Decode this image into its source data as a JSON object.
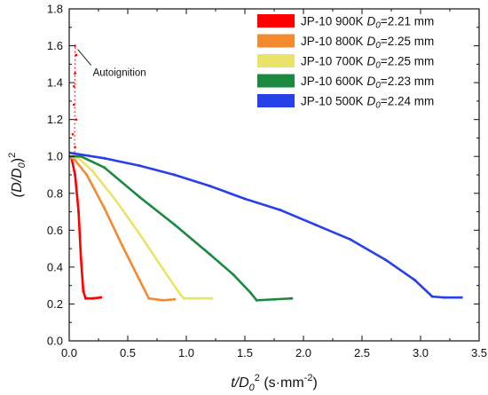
{
  "chart_data": {
    "type": "line",
    "xlabel": {
      "main": "t/D",
      "sub": "0",
      "sup": "2",
      "units": " (s·mm",
      "units_sup": "-2",
      "units_end": ")"
    },
    "ylabel": {
      "open": "(D/D",
      "sub": "0",
      "close": ")",
      "sup": "2"
    },
    "xlim": [
      0,
      3.5
    ],
    "ylim": [
      0,
      1.8
    ],
    "xticks": [
      "0.0",
      "0.5",
      "1.0",
      "1.5",
      "2.0",
      "2.5",
      "3.0",
      "3.5"
    ],
    "yticks": [
      "0.0",
      "0.2",
      "0.4",
      "0.6",
      "0.8",
      "1.0",
      "1.2",
      "1.4",
      "1.6",
      "1.8"
    ],
    "grid": false,
    "legend_position": "top-right",
    "annotation": {
      "text": "Autoignition",
      "x": 0.05,
      "y": 1.6
    },
    "series": [
      {
        "name": "JP-10 900K",
        "d0_label": "D",
        "d0_sub": "0",
        "d0_value": "=2.21 mm",
        "color": "#ff0000",
        "points": [
          [
            0.0,
            1.0
          ],
          [
            0.02,
            0.99
          ],
          [
            0.05,
            0.9
          ],
          [
            0.08,
            0.7
          ],
          [
            0.1,
            0.45
          ],
          [
            0.12,
            0.27
          ],
          [
            0.14,
            0.23
          ],
          [
            0.2,
            0.23
          ],
          [
            0.27,
            0.235
          ]
        ],
        "spikes": [
          [
            0.03,
            1.12
          ],
          [
            0.04,
            1.28
          ],
          [
            0.05,
            1.45
          ],
          [
            0.05,
            1.6
          ],
          [
            0.06,
            1.55
          ],
          [
            0.04,
            1.38
          ],
          [
            0.06,
            1.2
          ],
          [
            0.05,
            1.05
          ]
        ]
      },
      {
        "name": "JP-10 800K",
        "d0_label": "D",
        "d0_sub": "0",
        "d0_value": "=2.25 mm",
        "color": "#f28a30",
        "points": [
          [
            0.0,
            1.0
          ],
          [
            0.05,
            0.98
          ],
          [
            0.15,
            0.9
          ],
          [
            0.3,
            0.72
          ],
          [
            0.45,
            0.52
          ],
          [
            0.6,
            0.33
          ],
          [
            0.68,
            0.23
          ],
          [
            0.8,
            0.22
          ],
          [
            0.9,
            0.225
          ]
        ]
      },
      {
        "name": "JP-10 700K",
        "d0_label": "D",
        "d0_sub": "0",
        "d0_value": "=2.25 mm",
        "color": "#e9e36a",
        "points": [
          [
            0.0,
            1.0
          ],
          [
            0.08,
            0.99
          ],
          [
            0.2,
            0.92
          ],
          [
            0.4,
            0.76
          ],
          [
            0.6,
            0.58
          ],
          [
            0.8,
            0.39
          ],
          [
            0.95,
            0.25
          ],
          [
            0.98,
            0.23
          ],
          [
            1.1,
            0.23
          ],
          [
            1.22,
            0.23
          ]
        ]
      },
      {
        "name": "JP-10 600K",
        "d0_label": "D",
        "d0_sub": "0",
        "d0_value": "=2.23 mm",
        "color": "#1b8a40",
        "points": [
          [
            0.0,
            1.0
          ],
          [
            0.1,
            1.0
          ],
          [
            0.3,
            0.94
          ],
          [
            0.6,
            0.78
          ],
          [
            0.9,
            0.63
          ],
          [
            1.2,
            0.47
          ],
          [
            1.4,
            0.36
          ],
          [
            1.55,
            0.26
          ],
          [
            1.6,
            0.22
          ],
          [
            1.75,
            0.225
          ],
          [
            1.9,
            0.23
          ]
        ]
      },
      {
        "name": "JP-10 500K",
        "d0_label": "D",
        "d0_sub": "0",
        "d0_value": "=2.24 mm",
        "color": "#2840e8",
        "points": [
          [
            0.0,
            1.02
          ],
          [
            0.3,
            0.99
          ],
          [
            0.6,
            0.95
          ],
          [
            0.9,
            0.9
          ],
          [
            1.2,
            0.84
          ],
          [
            1.5,
            0.77
          ],
          [
            1.8,
            0.71
          ],
          [
            2.1,
            0.63
          ],
          [
            2.4,
            0.55
          ],
          [
            2.7,
            0.44
          ],
          [
            2.95,
            0.33
          ],
          [
            3.1,
            0.24
          ],
          [
            3.2,
            0.235
          ],
          [
            3.35,
            0.235
          ]
        ]
      }
    ]
  }
}
